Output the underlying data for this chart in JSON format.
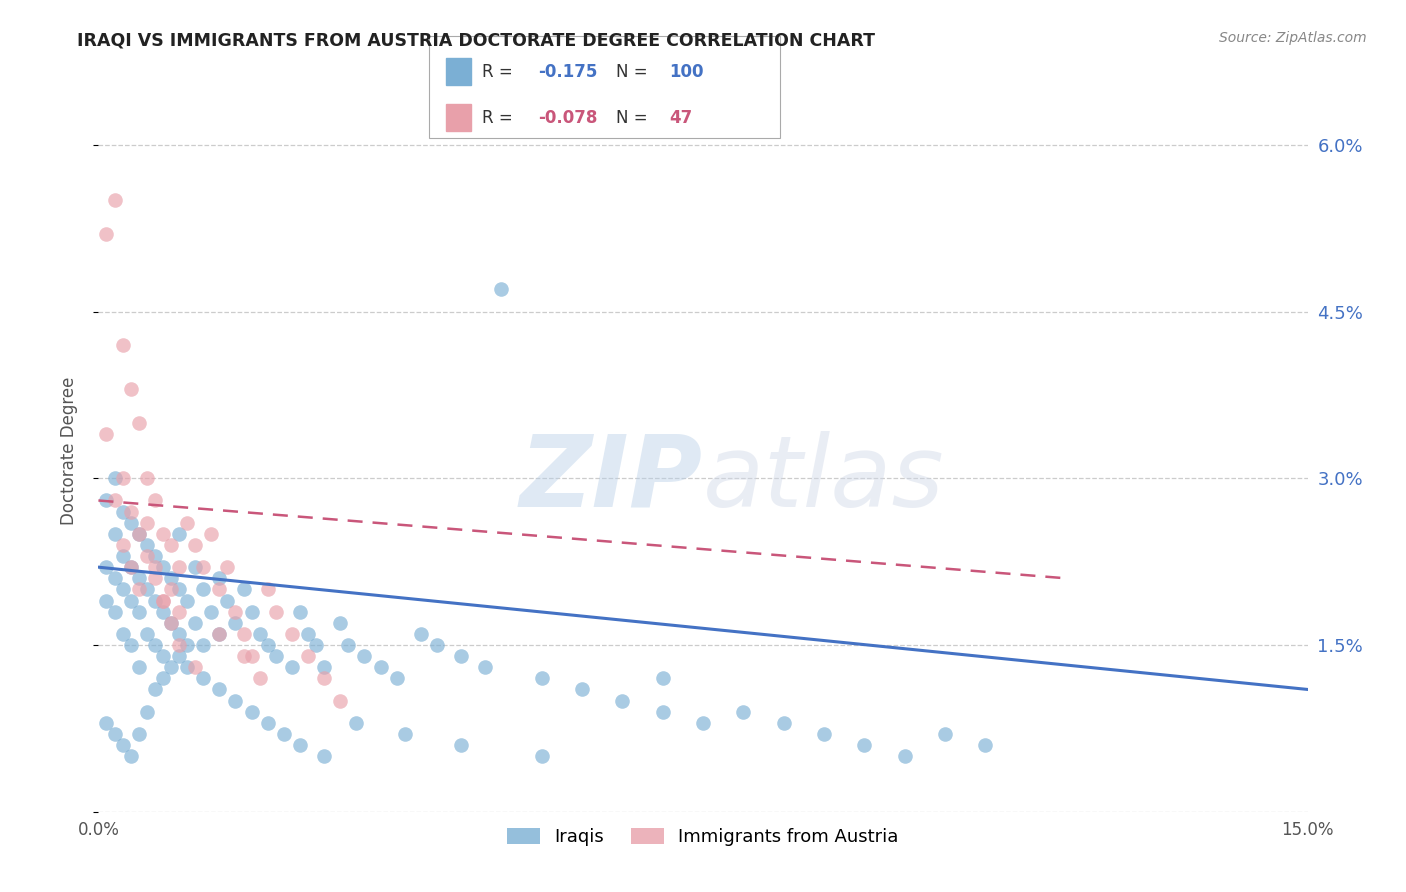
{
  "title": "IRAQI VS IMMIGRANTS FROM AUSTRIA DOCTORATE DEGREE CORRELATION CHART",
  "source": "Source: ZipAtlas.com",
  "ylabel": "Doctorate Degree",
  "xmin": 0.0,
  "xmax": 0.15,
  "ymin": 0.0,
  "ymax": 0.065,
  "yticks": [
    0.0,
    0.015,
    0.03,
    0.045,
    0.06
  ],
  "ytick_labels": [
    "",
    "1.5%",
    "3.0%",
    "4.5%",
    "6.0%"
  ],
  "watermark_zip": "ZIP",
  "watermark_atlas": "atlas",
  "series1_label": "Iraqis",
  "series1_color": "#7bafd4",
  "series1_line_color": "#4472c4",
  "series1_R": "-0.175",
  "series1_N": "100",
  "series2_label": "Immigrants from Austria",
  "series2_color": "#e8a0aa",
  "series2_line_color": "#c9567a",
  "series2_R": "-0.078",
  "series2_N": "47",
  "iraq_x": [
    0.001,
    0.001,
    0.001,
    0.002,
    0.002,
    0.002,
    0.002,
    0.003,
    0.003,
    0.003,
    0.003,
    0.004,
    0.004,
    0.004,
    0.004,
    0.005,
    0.005,
    0.005,
    0.005,
    0.006,
    0.006,
    0.006,
    0.007,
    0.007,
    0.007,
    0.008,
    0.008,
    0.008,
    0.009,
    0.009,
    0.01,
    0.01,
    0.01,
    0.011,
    0.011,
    0.012,
    0.012,
    0.013,
    0.013,
    0.014,
    0.015,
    0.015,
    0.016,
    0.017,
    0.018,
    0.019,
    0.02,
    0.021,
    0.022,
    0.024,
    0.025,
    0.026,
    0.027,
    0.028,
    0.03,
    0.031,
    0.033,
    0.035,
    0.037,
    0.04,
    0.042,
    0.045,
    0.048,
    0.05,
    0.055,
    0.06,
    0.065,
    0.07,
    0.075,
    0.08,
    0.085,
    0.09,
    0.095,
    0.1,
    0.105,
    0.11,
    0.001,
    0.002,
    0.003,
    0.004,
    0.005,
    0.006,
    0.007,
    0.008,
    0.009,
    0.01,
    0.011,
    0.013,
    0.015,
    0.017,
    0.019,
    0.021,
    0.023,
    0.025,
    0.028,
    0.032,
    0.038,
    0.045,
    0.055,
    0.07
  ],
  "iraq_y": [
    0.028,
    0.022,
    0.019,
    0.03,
    0.025,
    0.021,
    0.018,
    0.027,
    0.023,
    0.02,
    0.016,
    0.026,
    0.022,
    0.019,
    0.015,
    0.025,
    0.021,
    0.018,
    0.013,
    0.024,
    0.02,
    0.016,
    0.023,
    0.019,
    0.015,
    0.022,
    0.018,
    0.014,
    0.021,
    0.017,
    0.025,
    0.02,
    0.016,
    0.019,
    0.015,
    0.022,
    0.017,
    0.02,
    0.015,
    0.018,
    0.021,
    0.016,
    0.019,
    0.017,
    0.02,
    0.018,
    0.016,
    0.015,
    0.014,
    0.013,
    0.018,
    0.016,
    0.015,
    0.013,
    0.017,
    0.015,
    0.014,
    0.013,
    0.012,
    0.016,
    0.015,
    0.014,
    0.013,
    0.047,
    0.012,
    0.011,
    0.01,
    0.009,
    0.008,
    0.009,
    0.008,
    0.007,
    0.006,
    0.005,
    0.007,
    0.006,
    0.008,
    0.007,
    0.006,
    0.005,
    0.007,
    0.009,
    0.011,
    0.012,
    0.013,
    0.014,
    0.013,
    0.012,
    0.011,
    0.01,
    0.009,
    0.008,
    0.007,
    0.006,
    0.005,
    0.008,
    0.007,
    0.006,
    0.005,
    0.012
  ],
  "austria_x": [
    0.001,
    0.001,
    0.002,
    0.002,
    0.003,
    0.003,
    0.004,
    0.004,
    0.005,
    0.005,
    0.006,
    0.006,
    0.007,
    0.007,
    0.008,
    0.008,
    0.009,
    0.009,
    0.01,
    0.01,
    0.011,
    0.012,
    0.013,
    0.014,
    0.015,
    0.016,
    0.017,
    0.018,
    0.019,
    0.02,
    0.021,
    0.022,
    0.024,
    0.026,
    0.028,
    0.03,
    0.003,
    0.004,
    0.005,
    0.006,
    0.007,
    0.008,
    0.009,
    0.01,
    0.012,
    0.015,
    0.018
  ],
  "austria_y": [
    0.052,
    0.034,
    0.055,
    0.028,
    0.042,
    0.024,
    0.038,
    0.022,
    0.035,
    0.02,
    0.03,
    0.026,
    0.028,
    0.022,
    0.025,
    0.019,
    0.024,
    0.02,
    0.022,
    0.018,
    0.026,
    0.024,
    0.022,
    0.025,
    0.02,
    0.022,
    0.018,
    0.016,
    0.014,
    0.012,
    0.02,
    0.018,
    0.016,
    0.014,
    0.012,
    0.01,
    0.03,
    0.027,
    0.025,
    0.023,
    0.021,
    0.019,
    0.017,
    0.015,
    0.013,
    0.016,
    0.014
  ],
  "iraq_trendline_x": [
    0.0,
    0.15
  ],
  "iraq_trendline_y": [
    0.022,
    0.011
  ],
  "austria_trendline_x": [
    0.0,
    0.12
  ],
  "austria_trendline_y": [
    0.028,
    0.021
  ]
}
